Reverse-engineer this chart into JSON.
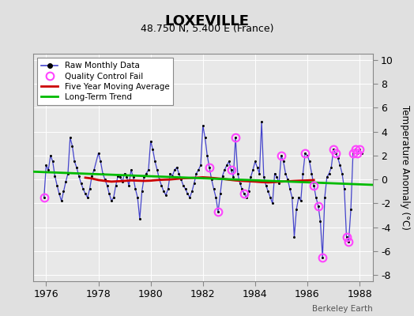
{
  "title": "LOXEVILLE",
  "subtitle": "48.750 N, 5.400 E (France)",
  "ylabel": "Temperature Anomaly (°C)",
  "watermark": "Berkeley Earth",
  "xlim": [
    1975.5,
    1988.5
  ],
  "ylim": [
    -8.5,
    10.5
  ],
  "yticks": [
    -8,
    -6,
    -4,
    -2,
    0,
    2,
    4,
    6,
    8,
    10
  ],
  "xticks": [
    1976,
    1978,
    1980,
    1982,
    1984,
    1986,
    1988
  ],
  "bg_color": "#e0e0e0",
  "plot_bg": "#e8e8e8",
  "raw_color": "#4444cc",
  "raw_marker_color": "#000000",
  "qc_color": "#ff44ff",
  "moving_avg_color": "#cc0000",
  "trend_color": "#00bb00",
  "raw_data": [
    [
      1975.917,
      -1.5
    ],
    [
      1976.0,
      1.2
    ],
    [
      1976.083,
      0.8
    ],
    [
      1976.167,
      2.0
    ],
    [
      1976.25,
      1.5
    ],
    [
      1976.333,
      0.3
    ],
    [
      1976.417,
      -0.5
    ],
    [
      1976.5,
      -1.2
    ],
    [
      1976.583,
      -1.8
    ],
    [
      1976.667,
      -1.0
    ],
    [
      1976.75,
      -0.2
    ],
    [
      1976.833,
      0.5
    ],
    [
      1976.917,
      3.5
    ],
    [
      1977.0,
      2.8
    ],
    [
      1977.083,
      1.5
    ],
    [
      1977.167,
      1.0
    ],
    [
      1977.25,
      0.3
    ],
    [
      1977.333,
      -0.3
    ],
    [
      1977.417,
      -0.8
    ],
    [
      1977.5,
      -1.2
    ],
    [
      1977.583,
      -1.5
    ],
    [
      1977.667,
      -0.8
    ],
    [
      1977.75,
      0.3
    ],
    [
      1977.833,
      0.8
    ],
    [
      1978.0,
      2.2
    ],
    [
      1978.083,
      1.5
    ],
    [
      1978.167,
      0.5
    ],
    [
      1978.25,
      0.0
    ],
    [
      1978.333,
      -0.5
    ],
    [
      1978.417,
      -1.2
    ],
    [
      1978.5,
      -1.8
    ],
    [
      1978.583,
      -1.5
    ],
    [
      1978.667,
      -0.5
    ],
    [
      1978.75,
      0.3
    ],
    [
      1978.833,
      0.2
    ],
    [
      1978.917,
      -0.2
    ],
    [
      1979.0,
      0.5
    ],
    [
      1979.083,
      0.2
    ],
    [
      1979.167,
      -0.5
    ],
    [
      1979.25,
      0.8
    ],
    [
      1979.333,
      0.2
    ],
    [
      1979.417,
      -0.8
    ],
    [
      1979.5,
      -1.5
    ],
    [
      1979.583,
      -3.3
    ],
    [
      1979.667,
      -1.0
    ],
    [
      1979.75,
      0.2
    ],
    [
      1979.833,
      0.5
    ],
    [
      1979.917,
      0.8
    ],
    [
      1980.0,
      3.2
    ],
    [
      1980.083,
      2.5
    ],
    [
      1980.167,
      1.5
    ],
    [
      1980.25,
      0.8
    ],
    [
      1980.333,
      0.0
    ],
    [
      1980.417,
      -0.5
    ],
    [
      1980.5,
      -1.0
    ],
    [
      1980.583,
      -1.3
    ],
    [
      1980.667,
      -0.8
    ],
    [
      1980.75,
      0.5
    ],
    [
      1980.833,
      0.3
    ],
    [
      1980.917,
      0.8
    ],
    [
      1981.0,
      1.0
    ],
    [
      1981.083,
      0.5
    ],
    [
      1981.167,
      0.0
    ],
    [
      1981.25,
      -0.5
    ],
    [
      1981.333,
      -0.8
    ],
    [
      1981.417,
      -1.2
    ],
    [
      1981.5,
      -1.5
    ],
    [
      1981.583,
      -1.0
    ],
    [
      1981.667,
      -0.3
    ],
    [
      1981.75,
      0.5
    ],
    [
      1981.833,
      0.8
    ],
    [
      1981.917,
      1.2
    ],
    [
      1982.0,
      4.5
    ],
    [
      1982.083,
      3.5
    ],
    [
      1982.167,
      2.0
    ],
    [
      1982.25,
      1.0
    ],
    [
      1982.333,
      0.0
    ],
    [
      1982.417,
      -0.8
    ],
    [
      1982.5,
      -1.5
    ],
    [
      1982.583,
      -2.7
    ],
    [
      1982.667,
      -1.2
    ],
    [
      1982.75,
      0.3
    ],
    [
      1982.833,
      0.8
    ],
    [
      1982.917,
      1.2
    ],
    [
      1983.0,
      1.5
    ],
    [
      1983.083,
      0.8
    ],
    [
      1983.167,
      0.2
    ],
    [
      1983.25,
      3.5
    ],
    [
      1983.333,
      0.5
    ],
    [
      1983.417,
      -0.3
    ],
    [
      1983.5,
      -0.8
    ],
    [
      1983.583,
      -1.2
    ],
    [
      1983.667,
      -1.5
    ],
    [
      1983.75,
      -1.0
    ],
    [
      1983.833,
      0.2
    ],
    [
      1983.917,
      0.8
    ],
    [
      1984.0,
      1.5
    ],
    [
      1984.083,
      1.0
    ],
    [
      1984.167,
      0.5
    ],
    [
      1984.25,
      4.8
    ],
    [
      1984.333,
      0.2
    ],
    [
      1984.417,
      -0.5
    ],
    [
      1984.5,
      -1.0
    ],
    [
      1984.583,
      -1.5
    ],
    [
      1984.667,
      -2.0
    ],
    [
      1984.75,
      0.5
    ],
    [
      1984.833,
      0.2
    ],
    [
      1984.917,
      -0.3
    ],
    [
      1985.0,
      2.0
    ],
    [
      1985.083,
      1.5
    ],
    [
      1985.167,
      0.5
    ],
    [
      1985.25,
      0.0
    ],
    [
      1985.333,
      -0.8
    ],
    [
      1985.417,
      -1.5
    ],
    [
      1985.5,
      -4.8
    ],
    [
      1985.583,
      -2.5
    ],
    [
      1985.667,
      -1.5
    ],
    [
      1985.75,
      -1.8
    ],
    [
      1985.833,
      0.5
    ],
    [
      1985.917,
      2.2
    ],
    [
      1986.0,
      2.0
    ],
    [
      1986.083,
      1.5
    ],
    [
      1986.167,
      0.5
    ],
    [
      1986.25,
      -0.5
    ],
    [
      1986.333,
      -1.5
    ],
    [
      1986.417,
      -2.2
    ],
    [
      1986.5,
      -3.5
    ],
    [
      1986.583,
      -6.5
    ],
    [
      1986.667,
      -1.5
    ],
    [
      1986.75,
      0.2
    ],
    [
      1986.833,
      0.5
    ],
    [
      1986.917,
      1.0
    ],
    [
      1987.0,
      2.5
    ],
    [
      1987.083,
      2.2
    ],
    [
      1987.167,
      1.8
    ],
    [
      1987.25,
      1.2
    ],
    [
      1987.333,
      0.5
    ],
    [
      1987.417,
      -0.8
    ],
    [
      1987.5,
      -4.8
    ],
    [
      1987.583,
      -5.2
    ],
    [
      1987.667,
      -2.5
    ],
    [
      1987.75,
      2.2
    ],
    [
      1987.833,
      2.5
    ],
    [
      1987.917,
      2.2
    ],
    [
      1988.0,
      2.5
    ],
    [
      1988.083,
      2.2
    ]
  ],
  "qc_fail_points": [
    [
      1975.917,
      -1.5
    ],
    [
      1982.25,
      1.0
    ],
    [
      1982.583,
      -2.7
    ],
    [
      1983.083,
      0.8
    ],
    [
      1983.25,
      3.5
    ],
    [
      1983.583,
      -1.2
    ],
    [
      1985.0,
      2.0
    ],
    [
      1985.917,
      2.2
    ],
    [
      1986.25,
      -0.5
    ],
    [
      1986.417,
      -2.2
    ],
    [
      1986.583,
      -6.5
    ],
    [
      1987.0,
      2.5
    ],
    [
      1987.083,
      2.2
    ],
    [
      1987.5,
      -4.8
    ],
    [
      1987.583,
      -5.2
    ],
    [
      1987.75,
      2.2
    ],
    [
      1987.833,
      2.5
    ],
    [
      1987.917,
      2.2
    ],
    [
      1988.0,
      2.5
    ]
  ],
  "moving_avg": [
    [
      1977.5,
      0.15
    ],
    [
      1977.75,
      0.08
    ],
    [
      1978.0,
      -0.05
    ],
    [
      1978.25,
      -0.12
    ],
    [
      1978.5,
      -0.18
    ],
    [
      1978.75,
      -0.15
    ],
    [
      1979.0,
      -0.12
    ],
    [
      1979.25,
      -0.08
    ],
    [
      1979.5,
      -0.1
    ],
    [
      1979.75,
      -0.12
    ],
    [
      1980.0,
      -0.1
    ],
    [
      1980.25,
      -0.05
    ],
    [
      1980.5,
      -0.02
    ],
    [
      1980.75,
      0.0
    ],
    [
      1981.0,
      0.05
    ],
    [
      1981.25,
      0.1
    ],
    [
      1981.5,
      0.12
    ],
    [
      1981.75,
      0.15
    ],
    [
      1982.0,
      0.18
    ],
    [
      1982.25,
      0.15
    ],
    [
      1982.5,
      0.1
    ],
    [
      1982.75,
      0.05
    ],
    [
      1983.0,
      -0.02
    ],
    [
      1983.25,
      -0.08
    ],
    [
      1983.5,
      -0.12
    ],
    [
      1983.75,
      -0.15
    ],
    [
      1984.0,
      -0.18
    ],
    [
      1984.25,
      -0.22
    ],
    [
      1984.5,
      -0.25
    ],
    [
      1984.75,
      -0.22
    ],
    [
      1985.0,
      -0.18
    ],
    [
      1985.25,
      -0.15
    ],
    [
      1985.5,
      -0.12
    ],
    [
      1985.75,
      -0.1
    ],
    [
      1986.0,
      -0.08
    ],
    [
      1986.25,
      -0.05
    ]
  ],
  "trend_line": [
    [
      1975.5,
      0.65
    ],
    [
      1988.5,
      -0.45
    ]
  ],
  "grid_color": "#ffffff",
  "spine_color": "#888888"
}
